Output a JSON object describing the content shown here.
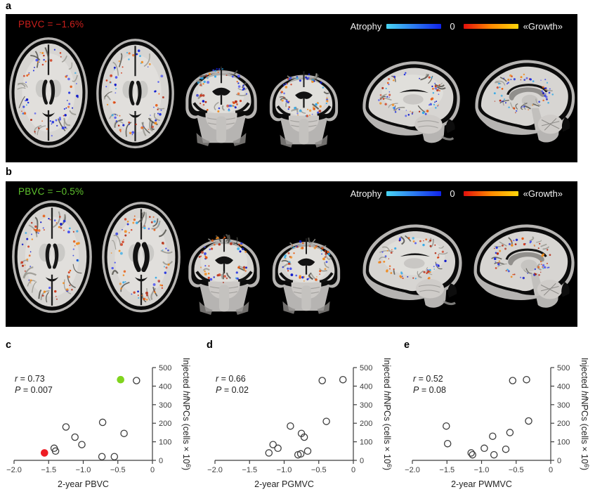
{
  "panels": {
    "a": {
      "label": "a",
      "pbvc_text": "PBVC = −1.6%",
      "pbvc_color": "#cb1f1c",
      "legend": {
        "atrophy_label": "Atrophy",
        "zero_label": "0",
        "growth_label": "«Growth»",
        "atrophy_gradient": [
          "#49d6f4",
          "#1023ec"
        ],
        "growth_gradient": [
          "#e30f0c",
          "#ff8a00",
          "#ffd60a"
        ]
      },
      "slices": [
        "axial",
        "axial",
        "coronal",
        "coronal",
        "sagittal-lateral",
        "sagittal-midline"
      ]
    },
    "b": {
      "label": "b",
      "pbvc_text": "PBVC = −0.5%",
      "pbvc_color": "#5ec22d",
      "legend": {
        "atrophy_label": "Atrophy",
        "zero_label": "0",
        "growth_label": "«Growth»",
        "atrophy_gradient": [
          "#49d6f4",
          "#1023ec"
        ],
        "growth_gradient": [
          "#e30f0c",
          "#ff8a00",
          "#ffd60a"
        ]
      },
      "slices": [
        "axial",
        "axial",
        "coronal",
        "coronal",
        "sagittal-lateral",
        "sagittal-midline"
      ]
    },
    "c": {
      "label": "c"
    },
    "d": {
      "label": "d"
    },
    "e": {
      "label": "e"
    }
  },
  "colors": {
    "axis": "#3d3d3d",
    "open_marker": "#3d3d3d",
    "red": "#ed1c24",
    "green": "#80d41e"
  },
  "chart_data": [
    {
      "panel": "c",
      "type": "scatter",
      "stats": {
        "r_sym": "r",
        "r_rest": " = 0.73",
        "p_sym": "P",
        "p_rest": " = 0.007"
      },
      "xlabel": "2-year PBVC",
      "ylabel": {
        "pre": "Injected ",
        "italic": "hf",
        "mid": "NPCs (cells × 10",
        "sup": "6",
        "post": ")"
      },
      "xlim": [
        -2.0,
        0
      ],
      "ylim": [
        0,
        500
      ],
      "xticks": [
        {
          "v": -2.0,
          "label": "−2.0"
        },
        {
          "v": -1.5,
          "label": "−1.5"
        },
        {
          "v": -1.0,
          "label": "−1.0"
        },
        {
          "v": -0.5,
          "label": "−0.5"
        },
        {
          "v": 0,
          "label": "0"
        }
      ],
      "yticks": [
        {
          "v": 0,
          "label": "0"
        },
        {
          "v": 100,
          "label": "100"
        },
        {
          "v": 200,
          "label": "200"
        },
        {
          "v": 300,
          "label": "300"
        },
        {
          "v": 400,
          "label": "400"
        },
        {
          "v": 500,
          "label": "500"
        }
      ],
      "points": [
        {
          "x": -1.56,
          "y": 40,
          "fill": "red"
        },
        {
          "x": -1.42,
          "y": 65,
          "fill": "open"
        },
        {
          "x": -1.4,
          "y": 50,
          "fill": "open"
        },
        {
          "x": -1.25,
          "y": 180,
          "fill": "open"
        },
        {
          "x": -1.12,
          "y": 125,
          "fill": "open"
        },
        {
          "x": -1.02,
          "y": 85,
          "fill": "open"
        },
        {
          "x": -0.73,
          "y": 20,
          "fill": "open"
        },
        {
          "x": -0.72,
          "y": 205,
          "fill": "open"
        },
        {
          "x": -0.55,
          "y": 20,
          "fill": "open"
        },
        {
          "x": -0.46,
          "y": 435,
          "fill": "green"
        },
        {
          "x": -0.41,
          "y": 145,
          "fill": "open"
        },
        {
          "x": -0.23,
          "y": 430,
          "fill": "open"
        }
      ]
    },
    {
      "panel": "d",
      "type": "scatter",
      "stats": {
        "r_sym": "r",
        "r_rest": " = 0.66",
        "p_sym": "P",
        "p_rest": " = 0.02"
      },
      "xlabel": "2-year PGMVC",
      "ylabel": {
        "pre": "Injected ",
        "italic": "hf",
        "mid": "NPCs (cells × 10",
        "sup": "6",
        "post": ")"
      },
      "xlim": [
        -2.0,
        0
      ],
      "ylim": [
        0,
        500
      ],
      "xticks": [
        {
          "v": -2.0,
          "label": "−2.0"
        },
        {
          "v": -1.5,
          "label": "−1.5"
        },
        {
          "v": -1.0,
          "label": "−1.0"
        },
        {
          "v": -0.5,
          "label": "−0.5"
        },
        {
          "v": 0,
          "label": "0"
        }
      ],
      "yticks": [
        {
          "v": 0,
          "label": "0"
        },
        {
          "v": 100,
          "label": "100"
        },
        {
          "v": 200,
          "label": "200"
        },
        {
          "v": 300,
          "label": "300"
        },
        {
          "v": 400,
          "label": "400"
        },
        {
          "v": 500,
          "label": "500"
        }
      ],
      "points": [
        {
          "x": -1.22,
          "y": 40,
          "fill": "open"
        },
        {
          "x": -1.16,
          "y": 85,
          "fill": "open"
        },
        {
          "x": -1.09,
          "y": 65,
          "fill": "open"
        },
        {
          "x": -0.91,
          "y": 185,
          "fill": "open"
        },
        {
          "x": -0.8,
          "y": 30,
          "fill": "open"
        },
        {
          "x": -0.76,
          "y": 35,
          "fill": "open"
        },
        {
          "x": -0.75,
          "y": 145,
          "fill": "open"
        },
        {
          "x": -0.71,
          "y": 125,
          "fill": "open"
        },
        {
          "x": -0.66,
          "y": 50,
          "fill": "open"
        },
        {
          "x": -0.45,
          "y": 430,
          "fill": "open"
        },
        {
          "x": -0.39,
          "y": 210,
          "fill": "open"
        },
        {
          "x": -0.15,
          "y": 435,
          "fill": "open"
        }
      ]
    },
    {
      "panel": "e",
      "type": "scatter",
      "stats": {
        "r_sym": "r",
        "r_rest": " = 0.52",
        "p_sym": "P",
        "p_rest": " = 0.08"
      },
      "xlabel": "2-year PWMVC",
      "ylabel": {
        "pre": "Injected ",
        "italic": "hf",
        "mid": "NPCs (cells × 10",
        "sup": "6",
        "post": ")"
      },
      "xlim": [
        -2.0,
        0
      ],
      "ylim": [
        0,
        500
      ],
      "xticks": [
        {
          "v": -2.0,
          "label": "−2.0"
        },
        {
          "v": -1.5,
          "label": "−1.5"
        },
        {
          "v": -1.0,
          "label": "−1.0"
        },
        {
          "v": -0.5,
          "label": "−0.5"
        },
        {
          "v": 0,
          "label": "0"
        }
      ],
      "yticks": [
        {
          "v": 0,
          "label": "0"
        },
        {
          "v": 100,
          "label": "100"
        },
        {
          "v": 200,
          "label": "200"
        },
        {
          "v": 300,
          "label": "300"
        },
        {
          "v": 400,
          "label": "400"
        },
        {
          "v": 500,
          "label": "500"
        }
      ],
      "points": [
        {
          "x": -1.51,
          "y": 185,
          "fill": "open"
        },
        {
          "x": -1.49,
          "y": 90,
          "fill": "open"
        },
        {
          "x": -1.15,
          "y": 40,
          "fill": "open"
        },
        {
          "x": -1.13,
          "y": 30,
          "fill": "open"
        },
        {
          "x": -0.96,
          "y": 65,
          "fill": "open"
        },
        {
          "x": -0.84,
          "y": 130,
          "fill": "open"
        },
        {
          "x": -0.82,
          "y": 30,
          "fill": "open"
        },
        {
          "x": -0.65,
          "y": 60,
          "fill": "open"
        },
        {
          "x": -0.59,
          "y": 150,
          "fill": "open"
        },
        {
          "x": -0.55,
          "y": 430,
          "fill": "open"
        },
        {
          "x": -0.35,
          "y": 435,
          "fill": "open"
        },
        {
          "x": -0.32,
          "y": 212,
          "fill": "open"
        }
      ]
    }
  ]
}
